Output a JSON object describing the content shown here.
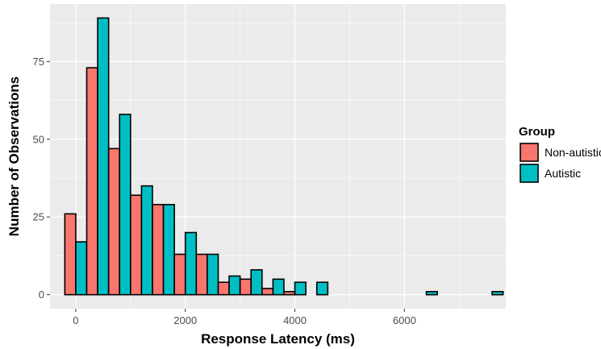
{
  "chart_data": {
    "type": "bar",
    "subtype": "histogram-dodged",
    "xlabel": "Response Latency (ms)",
    "ylabel": "Number of Observations",
    "xlim": [
      -470,
      7850
    ],
    "ylim": [
      -4.5,
      93.5
    ],
    "xticks": [
      0,
      2000,
      4000,
      6000
    ],
    "yticks": [
      0,
      25,
      50,
      75
    ],
    "bin_width": 400,
    "bin_centers": [
      0,
      400,
      800,
      1200,
      1600,
      2000,
      2400,
      2800,
      3200,
      3600,
      4000,
      4400,
      4800,
      5200,
      5600,
      6000,
      6400,
      6800,
      7200,
      7600
    ],
    "series": [
      {
        "name": "Non-autistic",
        "color": "#F8766D",
        "values": [
          26,
          73,
          47,
          32,
          29,
          13,
          13,
          4,
          5,
          2,
          1,
          0,
          0,
          0,
          0,
          0,
          0,
          0,
          0,
          0
        ]
      },
      {
        "name": "Autistic",
        "color": "#00BFC4",
        "values": [
          17,
          89,
          58,
          35,
          29,
          20,
          13,
          6,
          8,
          5,
          4,
          4,
          0,
          0,
          0,
          0,
          1,
          0,
          0,
          1
        ]
      }
    ],
    "legend": {
      "title": "Group",
      "position": "right"
    },
    "panel_background": "#EBEBEB",
    "grid_color": "#FFFFFF"
  }
}
